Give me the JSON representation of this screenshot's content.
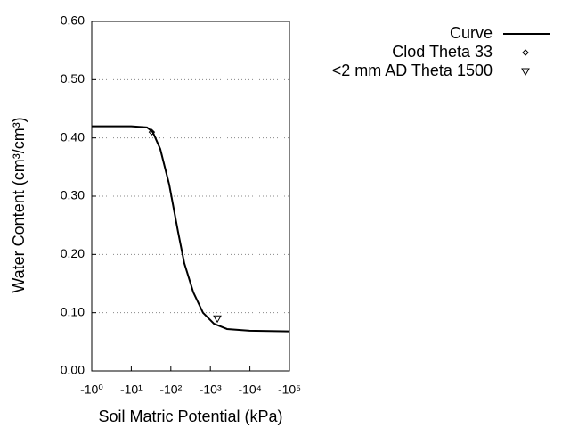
{
  "chart_data": {
    "type": "line",
    "x_label": "Soil Matric Potential (kPa)",
    "y_label": "Water Content (cm³/cm³)",
    "xscale": "log",
    "xlim": [
      1,
      100000
    ],
    "xticks": [
      {
        "value": 1,
        "label": "-10⁰"
      },
      {
        "value": 10,
        "label": "-10¹"
      },
      {
        "value": 100,
        "label": "-10²"
      },
      {
        "value": 1000,
        "label": "-10³"
      },
      {
        "value": 10000,
        "label": "-10⁴"
      },
      {
        "value": 100000,
        "label": "-10⁵"
      }
    ],
    "ylim": [
      0,
      0.6
    ],
    "yticks": [
      {
        "value": 0,
        "label": "0.00"
      },
      {
        "value": 0.1,
        "label": "0.10"
      },
      {
        "value": 0.2,
        "label": "0.20"
      },
      {
        "value": 0.3,
        "label": "0.30"
      },
      {
        "value": 0.4,
        "label": "0.40"
      },
      {
        "value": 0.5,
        "label": "0.50"
      },
      {
        "value": 0.6,
        "label": "0.60"
      }
    ],
    "grid": true,
    "legend": "top-right",
    "series": [
      {
        "name": "Curve",
        "color": "#000000",
        "marker": "line",
        "x": [
          1,
          10,
          25,
          35,
          54,
          91,
          152,
          219,
          370,
          650,
          1230,
          2640,
          9800,
          100000
        ],
        "values": [
          0.42,
          0.42,
          0.418,
          0.41,
          0.381,
          0.32,
          0.239,
          0.185,
          0.135,
          0.1,
          0.081,
          0.072,
          0.069,
          0.068
        ]
      },
      {
        "name": "Clod Theta 33",
        "color": "#000000",
        "marker": "diamond",
        "x": [
          33
        ],
        "values": [
          0.41
        ]
      },
      {
        "name": "<2 mm AD Theta 1500",
        "color": "#000000",
        "marker": "triangle",
        "x": [
          1500
        ],
        "values": [
          0.09
        ]
      }
    ]
  }
}
